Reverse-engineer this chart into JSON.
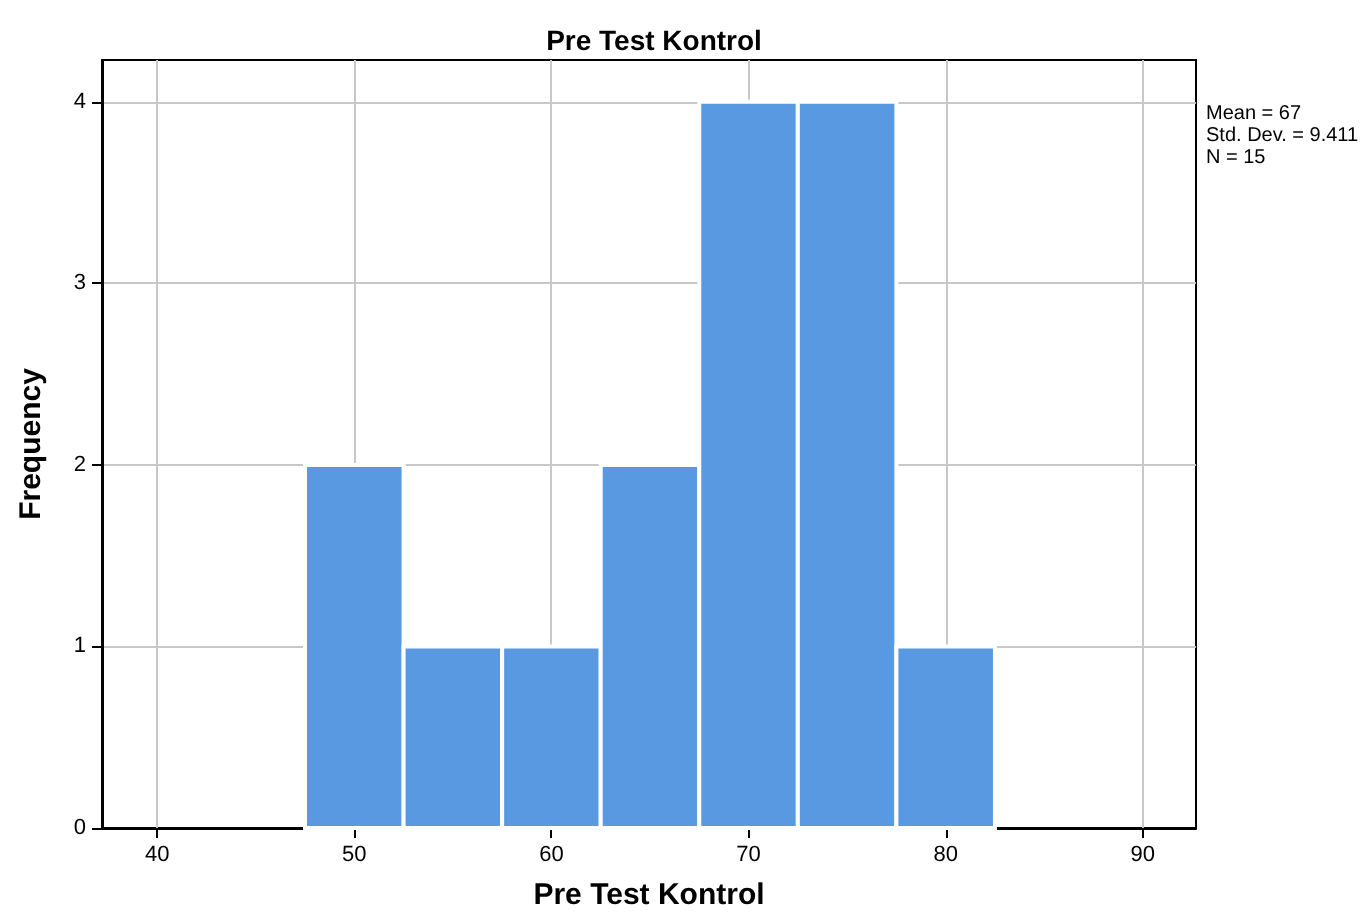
{
  "chart_data": {
    "type": "histogram",
    "title": "Pre Test Kontrol",
    "xlabel": "Pre Test Kontrol",
    "ylabel": "Frequency",
    "bins": [
      47.5,
      52.5,
      57.5,
      62.5,
      67.5,
      72.5,
      77.5,
      82.5
    ],
    "values": [
      2,
      1,
      1,
      2,
      4,
      4,
      1
    ],
    "color": "#5899e2",
    "xlim": [
      37.2,
      92.7
    ],
    "xticks": [
      40,
      50,
      60,
      70,
      80,
      90
    ],
    "ylim": [
      0,
      4.23
    ],
    "yticks": [
      0,
      1,
      2,
      3,
      4
    ],
    "grid": true,
    "annotations": [
      "Mean = 67",
      "Std. Dev. = 9.411",
      "N = 15"
    ]
  }
}
